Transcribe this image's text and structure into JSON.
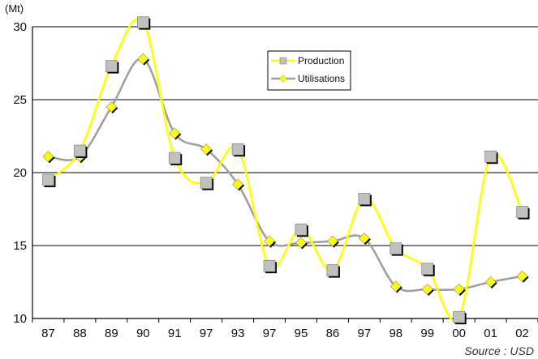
{
  "chart_data": {
    "type": "line",
    "title": "",
    "unit_label": "(Mt)",
    "source": "Source : USD",
    "ylim": [
      10,
      30
    ],
    "yticks": [
      10,
      15,
      20,
      25,
      30
    ],
    "grid": true,
    "legend_position": "top-right",
    "categories": [
      "87",
      "88",
      "89",
      "90",
      "91",
      "97",
      "93",
      "97",
      "95",
      "86",
      "97",
      "98",
      "99",
      "00",
      "01",
      "02"
    ],
    "series": [
      {
        "name": "Production",
        "color": "#ffff00",
        "marker": "square",
        "marker_color": "#c0c0c0",
        "values": [
          19.5,
          21.5,
          27.3,
          30.3,
          21.0,
          19.3,
          21.6,
          13.6,
          16.1,
          13.3,
          18.2,
          14.8,
          13.4,
          10.1,
          21.1,
          17.3
        ]
      },
      {
        "name": "Utilisations",
        "color": "#a0a0a0",
        "marker": "diamond",
        "marker_color": "#ffff00",
        "values": [
          21.1,
          21.1,
          24.5,
          27.8,
          22.7,
          21.6,
          19.2,
          15.3,
          15.2,
          15.3,
          15.5,
          12.2,
          12.0,
          12.0,
          12.5,
          12.9
        ]
      }
    ]
  }
}
